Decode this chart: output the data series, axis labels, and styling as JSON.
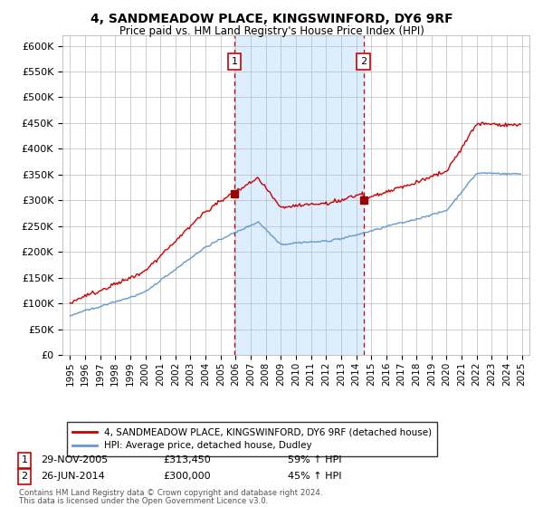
{
  "title": "4, SANDMEADOW PLACE, KINGSWINFORD, DY6 9RF",
  "subtitle": "Price paid vs. HM Land Registry's House Price Index (HPI)",
  "legend_line1": "4, SANDMEADOW PLACE, KINGSWINFORD, DY6 9RF (detached house)",
  "legend_line2": "HPI: Average price, detached house, Dudley",
  "footnote1": "Contains HM Land Registry data © Crown copyright and database right 2024.",
  "footnote2": "This data is licensed under the Open Government Licence v3.0.",
  "transaction1_date": "29-NOV-2005",
  "transaction1_price": "£313,450",
  "transaction1_hpi": "59% ↑ HPI",
  "transaction2_date": "26-JUN-2014",
  "transaction2_price": "£300,000",
  "transaction2_hpi": "45% ↑ HPI",
  "red_color": "#cc0000",
  "blue_color": "#6699cc",
  "shading_color": "#ddeeff",
  "dashed_color": "#cc0000",
  "ylim_min": 0,
  "ylim_max": 620000,
  "ytick_step": 50000,
  "transaction1_x": 2005.91,
  "transaction2_x": 2014.49,
  "price1": 313450,
  "price2": 300000,
  "fig_width": 6.0,
  "fig_height": 5.6,
  "dpi": 100
}
